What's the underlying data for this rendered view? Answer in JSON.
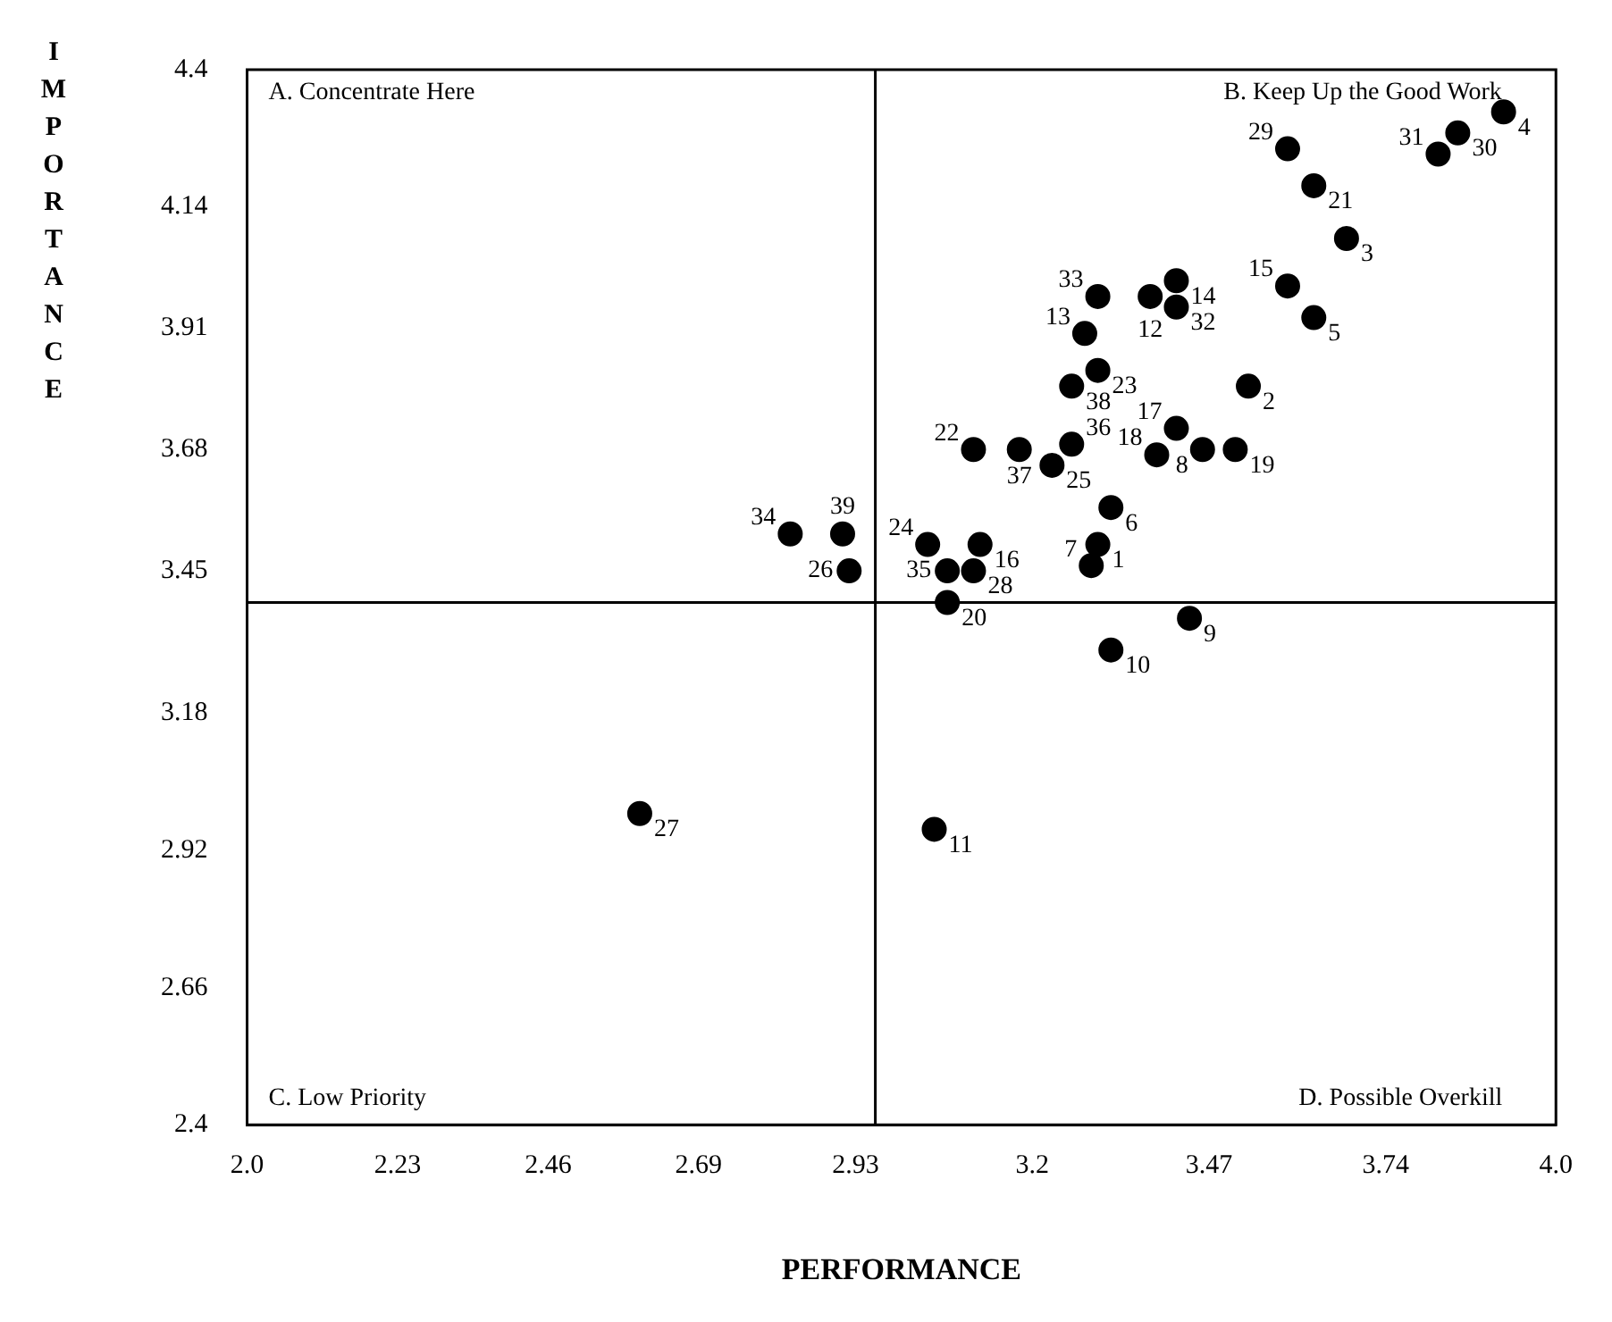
{
  "chart_data": {
    "type": "scatter",
    "xlabel": "PERFORMANCE",
    "ylabel": "IMPORTANCE",
    "xlim": [
      2.0,
      4.0
    ],
    "ylim": [
      2.4,
      4.4
    ],
    "xticks": [
      {
        "value": 2,
        "label": "2.0"
      },
      2.23,
      2.46,
      2.69,
      2.93,
      3.2,
      3.47,
      3.74,
      {
        "value": 4,
        "label": "4.0"
      }
    ],
    "yticks": [
      2.4,
      2.66,
      2.92,
      3.18,
      3.45,
      3.68,
      3.91,
      4.14,
      4.4
    ],
    "grid": false,
    "legend": false,
    "marker": "circle",
    "series": [
      {
        "color": "#000000",
        "x": [
          3.3,
          3.53,
          3.68,
          3.92,
          3.63,
          3.32,
          3.29,
          3.46,
          3.44,
          3.32,
          3.05,
          3.38,
          3.28,
          3.42,
          3.59,
          3.12,
          3.42,
          3.39,
          3.51,
          3.07,
          3.63,
          3.11,
          3.3,
          3.04,
          3.23,
          2.92,
          2.6,
          3.11,
          3.59,
          3.85,
          3.82,
          3.42,
          3.3,
          2.83,
          3.07,
          3.26,
          3.18,
          3.26,
          2.91
        ],
        "values": [
          3.5,
          3.8,
          4.08,
          4.32,
          3.93,
          3.57,
          3.46,
          3.68,
          3.36,
          3.3,
          2.96,
          3.97,
          3.9,
          4.0,
          3.99,
          3.5,
          3.72,
          3.67,
          3.68,
          3.39,
          4.18,
          3.68,
          3.83,
          3.5,
          3.65,
          3.45,
          2.99,
          3.45,
          4.25,
          4.28,
          4.24,
          3.95,
          3.97,
          3.52,
          3.45,
          3.69,
          3.68,
          3.8,
          3.52
        ]
      }
    ],
    "ref_lines": [
      {
        "axis": "x",
        "value": 2.96,
        "color": "#000000"
      },
      {
        "axis": "y",
        "value": 3.39,
        "color": "#000000"
      }
    ],
    "annotations": [
      "A. Concentrate Here",
      "B. Keep Up the Good Work",
      "C. Low Priority",
      "D. Possible Overkill",
      {
        "text": "1",
        "x": 3.3,
        "y": 3.5
      },
      {
        "text": "2",
        "x": 3.53,
        "y": 3.8
      },
      {
        "text": "3",
        "x": 3.68,
        "y": 4.08
      },
      {
        "text": "4",
        "x": 3.92,
        "y": 4.32
      },
      {
        "text": "5",
        "x": 3.63,
        "y": 3.93
      },
      {
        "text": "6",
        "x": 3.32,
        "y": 3.57
      },
      {
        "text": "7",
        "x": 3.29,
        "y": 3.46
      },
      {
        "text": "8",
        "x": 3.46,
        "y": 3.68
      },
      {
        "text": "9",
        "x": 3.44,
        "y": 3.36
      },
      {
        "text": "10",
        "x": 3.32,
        "y": 3.3
      },
      {
        "text": "11",
        "x": 3.05,
        "y": 2.96
      },
      {
        "text": "12",
        "x": 3.38,
        "y": 3.97
      },
      {
        "text": "13",
        "x": 3.28,
        "y": 3.9
      },
      {
        "text": "14",
        "x": 3.42,
        "y": 4.0
      },
      {
        "text": "15",
        "x": 3.59,
        "y": 3.99
      },
      {
        "text": "16",
        "x": 3.12,
        "y": 3.5
      },
      {
        "text": "17",
        "x": 3.42,
        "y": 3.72
      },
      {
        "text": "18",
        "x": 3.39,
        "y": 3.67
      },
      {
        "text": "19",
        "x": 3.51,
        "y": 3.68
      },
      {
        "text": "20",
        "x": 3.07,
        "y": 3.39
      },
      {
        "text": "21",
        "x": 3.63,
        "y": 4.18
      },
      {
        "text": "22",
        "x": 3.11,
        "y": 3.68
      },
      {
        "text": "23",
        "x": 3.3,
        "y": 3.83
      },
      {
        "text": "24",
        "x": 3.04,
        "y": 3.5
      },
      {
        "text": "25",
        "x": 3.23,
        "y": 3.65
      },
      {
        "text": "26",
        "x": 2.92,
        "y": 3.45
      },
      {
        "text": "27",
        "x": 2.6,
        "y": 2.99
      },
      {
        "text": "28",
        "x": 3.11,
        "y": 3.45
      },
      {
        "text": "29",
        "x": 3.59,
        "y": 4.25
      },
      {
        "text": "30",
        "x": 3.85,
        "y": 4.28
      },
      {
        "text": "31",
        "x": 3.82,
        "y": 4.24
      },
      {
        "text": "32",
        "x": 3.42,
        "y": 3.95
      },
      {
        "text": "33",
        "x": 3.3,
        "y": 3.97
      },
      {
        "text": "34",
        "x": 2.83,
        "y": 3.52
      },
      {
        "text": "35",
        "x": 3.07,
        "y": 3.45
      },
      {
        "text": "36",
        "x": 3.26,
        "y": 3.69
      },
      {
        "text": "37",
        "x": 3.18,
        "y": 3.68
      },
      {
        "text": "38",
        "x": 3.26,
        "y": 3.8
      },
      {
        "text": "39",
        "x": 2.91,
        "y": 3.52
      }
    ]
  }
}
